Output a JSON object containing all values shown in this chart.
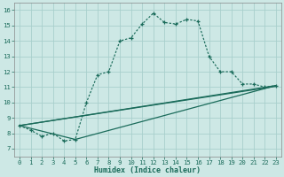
{
  "xlabel": "Humidex (Indice chaleur)",
  "background_color": "#cde8e5",
  "grid_color": "#a8d0cc",
  "line_color": "#1a6b5a",
  "xlim": [
    -0.5,
    23.5
  ],
  "ylim": [
    6.5,
    16.5
  ],
  "xticks": [
    0,
    1,
    2,
    3,
    4,
    5,
    6,
    7,
    8,
    9,
    10,
    11,
    12,
    13,
    14,
    15,
    16,
    17,
    18,
    19,
    20,
    21,
    22,
    23
  ],
  "yticks": [
    7,
    8,
    9,
    10,
    11,
    12,
    13,
    14,
    15,
    16
  ],
  "main_x": [
    0,
    1,
    2,
    3,
    4,
    5,
    6,
    7,
    8,
    9,
    10,
    11,
    12,
    13,
    14,
    15,
    16,
    17,
    18,
    19,
    20,
    21,
    22,
    23
  ],
  "main_y": [
    8.5,
    8.2,
    7.8,
    8.0,
    7.5,
    7.6,
    10.0,
    11.8,
    12.0,
    14.0,
    14.2,
    15.1,
    15.8,
    15.2,
    15.1,
    15.4,
    15.3,
    13.0,
    12.0,
    12.0,
    11.2,
    11.2,
    11.0,
    11.1
  ],
  "line1_x": [
    0,
    23
  ],
  "line1_y": [
    8.5,
    11.1
  ],
  "line2_x": [
    0,
    5,
    23
  ],
  "line2_y": [
    8.5,
    7.6,
    11.1
  ],
  "line3_x": [
    0,
    23
  ],
  "line3_y": [
    8.5,
    11.1
  ]
}
